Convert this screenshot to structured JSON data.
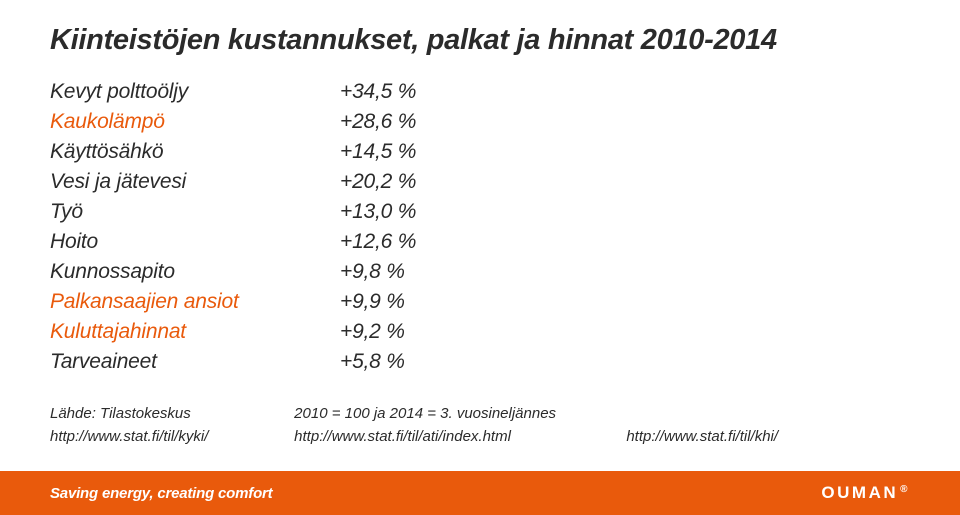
{
  "colors": {
    "accent": "#e95a0c",
    "text": "#2b2b2b",
    "footer_bg": "#e95a0c",
    "footer_text": "#ffffff",
    "background": "#ffffff"
  },
  "typography": {
    "title_fontsize": 29,
    "row_fontsize": 21,
    "small_fontsize": 15,
    "font_style": "italic"
  },
  "title": "Kiinteistöjen kustannukset, palkat ja hinnat 2010-2014",
  "rows": [
    {
      "label": "Kevyt polttoöljy",
      "value": "+34,5 %",
      "highlight": false
    },
    {
      "label": "Kaukolämpö",
      "value": "+28,6 %",
      "highlight": true
    },
    {
      "label": "Käyttösähkö",
      "value": "+14,5 %",
      "highlight": false
    },
    {
      "label": "Vesi ja jätevesi",
      "value": "+20,2 %",
      "highlight": false
    },
    {
      "label": "Työ",
      "value": "+13,0 %",
      "highlight": false
    },
    {
      "label": "Hoito",
      "value": "+12,6 %",
      "highlight": false
    },
    {
      "label": "Kunnossapito",
      "value": "+9,8 %",
      "highlight": false
    },
    {
      "label": "Palkansaajien ansiot",
      "value": "+9,9 %",
      "highlight": true
    },
    {
      "label": "Kuluttajahinnat",
      "value": "+9,2 %",
      "highlight": true
    },
    {
      "label": "Tarveaineet",
      "value": "+5,8 %",
      "highlight": false
    }
  ],
  "source": {
    "label": "Lähde: Tilastokeskus",
    "note": "2010 = 100 ja 2014 = 3. vuosineljännes"
  },
  "links": {
    "l1": "http://www.stat.fi/til/kyki/",
    "l2": "http://www.stat.fi/til/ati/index.html",
    "l3": "http://www.stat.fi/til/khi/"
  },
  "footer": {
    "left": "Saving energy, creating comfort",
    "brand": "OUMAN",
    "reg": "®"
  }
}
